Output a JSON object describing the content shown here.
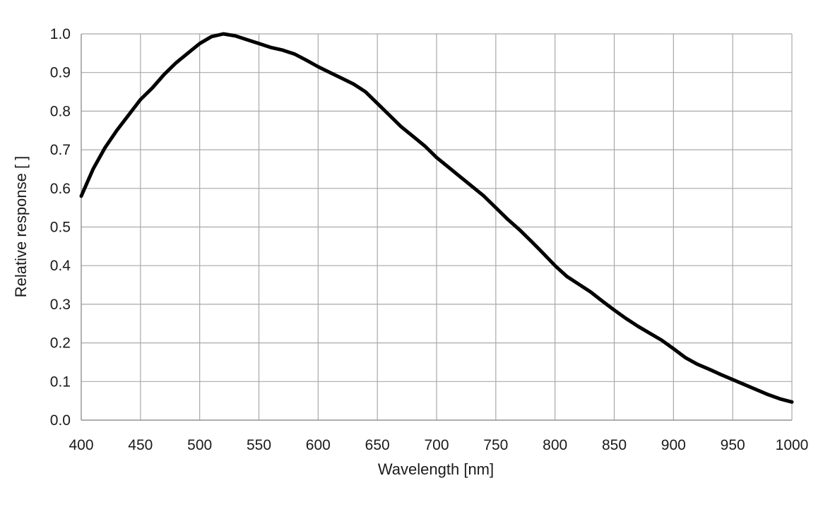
{
  "chart_data": {
    "type": "line",
    "title": "",
    "xlabel": "Wavelength [nm]",
    "ylabel": "Relative response [ ]",
    "xlim": [
      400,
      1000
    ],
    "ylim": [
      0.0,
      1.0
    ],
    "x_ticks": [
      "400",
      "450",
      "500",
      "550",
      "600",
      "650",
      "700",
      "750",
      "800",
      "850",
      "900",
      "950",
      "1000"
    ],
    "y_ticks": [
      "0.0",
      "0.1",
      "0.2",
      "0.3",
      "0.4",
      "0.5",
      "0.6",
      "0.7",
      "0.8",
      "0.9",
      "1.0"
    ],
    "grid": true,
    "legend": "none",
    "line_color": "#000000",
    "series": [
      {
        "x": [
          400,
          410,
          420,
          430,
          440,
          450,
          460,
          470,
          480,
          490,
          500,
          510,
          520,
          530,
          540,
          550,
          560,
          570,
          580,
          590,
          600,
          610,
          620,
          630,
          640,
          650,
          660,
          670,
          680,
          690,
          700,
          710,
          720,
          730,
          740,
          750,
          760,
          770,
          780,
          790,
          800,
          810,
          820,
          830,
          840,
          850,
          860,
          870,
          880,
          890,
          900,
          910,
          920,
          930,
          940,
          950,
          960,
          970,
          980,
          990,
          1000
        ],
        "y": [
          0.58,
          0.65,
          0.705,
          0.75,
          0.79,
          0.83,
          0.86,
          0.895,
          0.925,
          0.95,
          0.975,
          0.993,
          1.0,
          0.995,
          0.985,
          0.975,
          0.965,
          0.958,
          0.948,
          0.932,
          0.915,
          0.9,
          0.885,
          0.87,
          0.85,
          0.82,
          0.79,
          0.76,
          0.735,
          0.71,
          0.68,
          0.655,
          0.63,
          0.605,
          0.58,
          0.55,
          0.52,
          0.493,
          0.463,
          0.432,
          0.4,
          0.372,
          0.352,
          0.332,
          0.308,
          0.285,
          0.263,
          0.243,
          0.225,
          0.207,
          0.185,
          0.162,
          0.145,
          0.132,
          0.118,
          0.105,
          0.092,
          0.079,
          0.066,
          0.055,
          0.047
        ]
      }
    ]
  }
}
